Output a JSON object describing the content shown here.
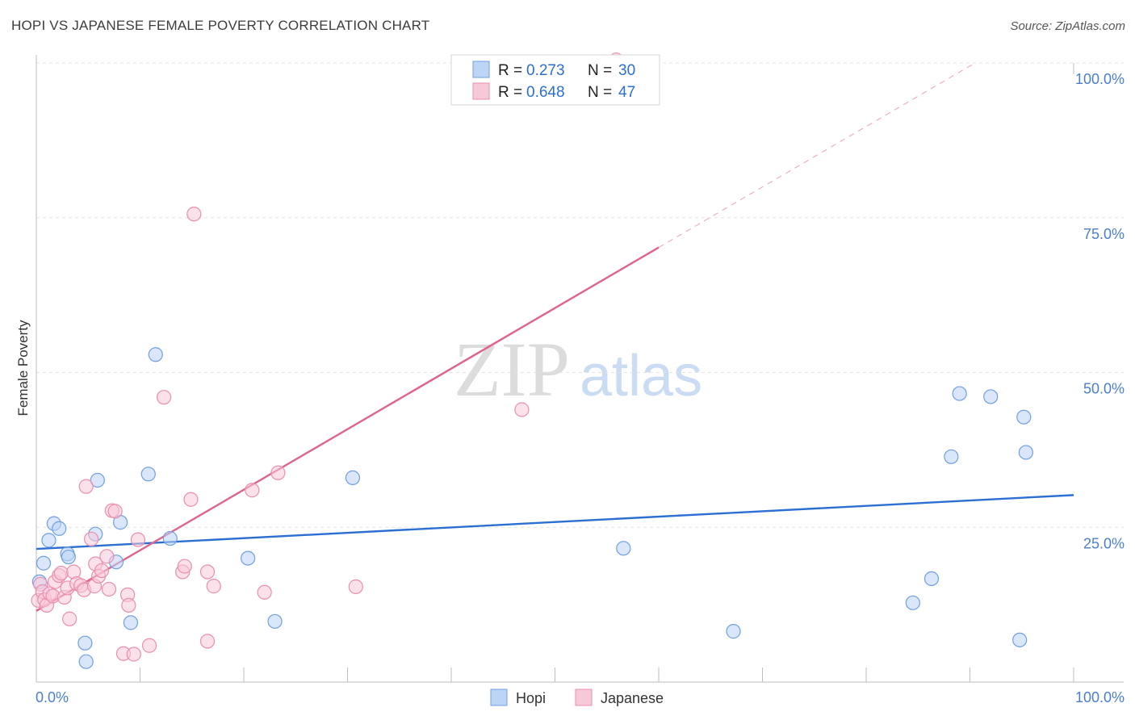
{
  "chart_data": {
    "type": "scatter",
    "title": "HOPI VS JAPANESE FEMALE POVERTY CORRELATION CHART",
    "source": "Source: ZipAtlas.com",
    "ylabel": "Female Poverty",
    "xlabel": "",
    "xlim": [
      0,
      100
    ],
    "ylim": [
      0,
      100
    ],
    "x_ticks": [
      {
        "value": 0,
        "label": "0.0%"
      },
      {
        "value": 100,
        "label": "100.0%"
      }
    ],
    "y_ticks": [
      {
        "value": 25,
        "label": "25.0%"
      },
      {
        "value": 50,
        "label": "50.0%"
      },
      {
        "value": 75,
        "label": "75.0%"
      },
      {
        "value": 100,
        "label": "100.0%"
      }
    ],
    "grid": true,
    "watermark": {
      "zip": "ZIP",
      "atlas": "atlas"
    },
    "legend_position": "top-center",
    "bottom_legend": [
      "Hopi",
      "Japanese"
    ],
    "series": [
      {
        "name": "Hopi",
        "color": "#6f9fe0",
        "fill": "#bcd4f5",
        "line_color": "#2a6fd1",
        "r_label": "R =",
        "r_value": "0.273",
        "n_label": "N =",
        "n_value": "30",
        "trend": {
          "x0": 0,
          "y0": 21.5,
          "x1": 100,
          "y1": 30.2
        },
        "points": [
          [
            0.3,
            16.2
          ],
          [
            0.7,
            19.2
          ],
          [
            1.2,
            22.9
          ],
          [
            1.7,
            25.6
          ],
          [
            2.2,
            24.8
          ],
          [
            3.0,
            20.7
          ],
          [
            3.1,
            20.2
          ],
          [
            4.8,
            3.3
          ],
          [
            4.7,
            6.3
          ],
          [
            5.7,
            23.9
          ],
          [
            5.9,
            32.6
          ],
          [
            7.7,
            19.4
          ],
          [
            8.1,
            25.8
          ],
          [
            9.1,
            9.6
          ],
          [
            10.8,
            33.6
          ],
          [
            11.5,
            52.9
          ],
          [
            12.9,
            23.2
          ],
          [
            20.4,
            20.0
          ],
          [
            23.0,
            9.8
          ],
          [
            30.5,
            33.0
          ],
          [
            56.6,
            21.6
          ],
          [
            67.2,
            8.2
          ],
          [
            84.5,
            12.8
          ],
          [
            86.3,
            16.7
          ],
          [
            88.2,
            36.4
          ],
          [
            89.0,
            46.6
          ],
          [
            92.0,
            46.1
          ],
          [
            94.8,
            6.8
          ],
          [
            95.2,
            42.8
          ],
          [
            95.4,
            37.1
          ]
        ]
      },
      {
        "name": "Japanese",
        "color": "#ea8eac",
        "fill": "#f7c9d8",
        "line_color": "#e0628e",
        "r_label": "R =",
        "r_value": "0.648",
        "n_label": "N =",
        "n_value": "47",
        "trend": {
          "x0": 0,
          "y0": 11.5,
          "x1": 60,
          "y1": 70.2
        },
        "trend_ext": {
          "x0": 60,
          "y0": 70.2,
          "x1": 90.5,
          "y1": 100
        },
        "points": [
          [
            0.2,
            13.2
          ],
          [
            0.4,
            15.8
          ],
          [
            0.6,
            14.6
          ],
          [
            0.8,
            13.3
          ],
          [
            1.0,
            12.4
          ],
          [
            1.3,
            14.3
          ],
          [
            1.6,
            13.9
          ],
          [
            1.8,
            16.2
          ],
          [
            2.2,
            17.2
          ],
          [
            2.4,
            17.6
          ],
          [
            2.7,
            13.7
          ],
          [
            3.0,
            15.2
          ],
          [
            3.2,
            10.2
          ],
          [
            3.6,
            17.8
          ],
          [
            3.9,
            15.9
          ],
          [
            4.3,
            15.6
          ],
          [
            4.6,
            14.9
          ],
          [
            4.8,
            31.6
          ],
          [
            5.3,
            23.1
          ],
          [
            5.6,
            15.5
          ],
          [
            5.7,
            19.1
          ],
          [
            6.0,
            17.1
          ],
          [
            6.3,
            18.0
          ],
          [
            6.8,
            20.3
          ],
          [
            7.0,
            15.0
          ],
          [
            7.3,
            27.7
          ],
          [
            7.6,
            27.6
          ],
          [
            8.4,
            4.6
          ],
          [
            8.8,
            14.1
          ],
          [
            8.9,
            12.4
          ],
          [
            9.4,
            4.5
          ],
          [
            9.8,
            23.0
          ],
          [
            10.9,
            5.9
          ],
          [
            12.3,
            46.0
          ],
          [
            14.1,
            17.8
          ],
          [
            14.3,
            18.7
          ],
          [
            14.9,
            29.5
          ],
          [
            15.2,
            75.6
          ],
          [
            16.5,
            6.6
          ],
          [
            16.5,
            17.8
          ],
          [
            17.1,
            15.5
          ],
          [
            20.8,
            31.0
          ],
          [
            22.0,
            14.5
          ],
          [
            23.3,
            33.8
          ],
          [
            30.8,
            15.4
          ],
          [
            46.8,
            44.0
          ],
          [
            55.9,
            100.5
          ]
        ]
      }
    ]
  }
}
